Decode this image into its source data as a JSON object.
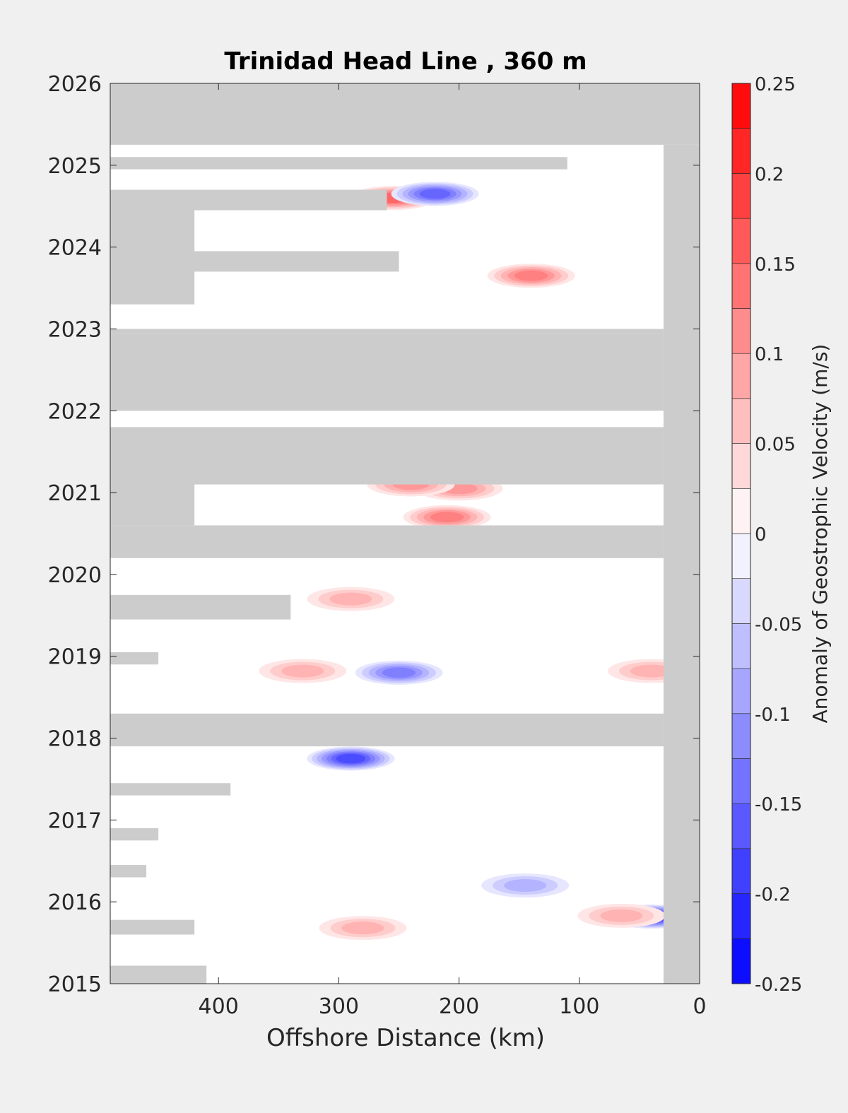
{
  "chart_data": {
    "type": "heatmap",
    "title": "Trinidad Head Line , 360 m",
    "xlabel": "Offshore Distance (km)",
    "ylabel": "",
    "xlim": [
      490,
      0
    ],
    "ylim": [
      2015,
      2026
    ],
    "x_ticks": [
      400,
      300,
      200,
      100,
      0
    ],
    "x_tick_labels": [
      "400",
      "300",
      "200",
      "100",
      "0"
    ],
    "y_ticks": [
      2015,
      2016,
      2017,
      2018,
      2019,
      2020,
      2021,
      2022,
      2023,
      2024,
      2025,
      2026
    ],
    "y_tick_labels": [
      "2015",
      "2016",
      "2017",
      "2018",
      "2019",
      "2020",
      "2021",
      "2022",
      "2023",
      "2024",
      "2025",
      "2026"
    ],
    "colorbar": {
      "label": "Anomaly of Geostrophic Velocity (m/s)",
      "min": -0.25,
      "max": 0.25,
      "step": 0.025,
      "ticks": [
        -0.25,
        -0.2,
        -0.15,
        -0.1,
        -0.05,
        0,
        0.05,
        0.1,
        0.15,
        0.2,
        0.25
      ],
      "tick_labels": [
        "-0.25",
        "-0.2",
        "-0.15",
        "-0.1",
        "-0.05",
        "0",
        "0.05",
        "0.1",
        "0.15",
        "0.2",
        "0.25"
      ],
      "colormap": "blue-white-red"
    },
    "colors": {
      "no_data": "#cccccc",
      "positive_max": "#ff0000",
      "negative_max": "#0000ff",
      "zero": "#ffffff"
    },
    "no_data_regions": [
      {
        "years": [
          2025.25,
          2026
        ],
        "x": [
          490,
          0
        ]
      },
      {
        "years": [
          2015,
          2025.25
        ],
        "x": [
          30,
          0
        ]
      },
      {
        "years": [
          2022.95,
          2023.0
        ],
        "x": [
          490,
          30
        ]
      },
      {
        "years": [
          2022.0,
          2022.95
        ],
        "x": [
          490,
          30
        ]
      },
      {
        "years": [
          2021.1,
          2021.8
        ],
        "x": [
          490,
          30
        ]
      },
      {
        "years": [
          2020.2,
          2020.6
        ],
        "x": [
          490,
          30
        ]
      },
      {
        "years": [
          2017.9,
          2018.3
        ],
        "x": [
          490,
          30
        ]
      },
      {
        "years": [
          2023.7,
          2023.95
        ],
        "x": [
          490,
          250
        ]
      },
      {
        "years": [
          2024.45,
          2024.7
        ],
        "x": [
          490,
          260
        ]
      },
      {
        "years": [
          2024.95,
          2025.1
        ],
        "x": [
          490,
          110
        ]
      },
      {
        "years": [
          2023.3,
          2024.5
        ],
        "x": [
          490,
          420
        ]
      },
      {
        "years": [
          2020.6,
          2021.1
        ],
        "x": [
          490,
          420
        ]
      },
      {
        "years": [
          2019.45,
          2019.75
        ],
        "x": [
          490,
          340
        ]
      },
      {
        "years": [
          2018.9,
          2019.05
        ],
        "x": [
          490,
          450
        ]
      },
      {
        "years": [
          2017.3,
          2017.45
        ],
        "x": [
          490,
          390
        ]
      },
      {
        "years": [
          2016.75,
          2016.9
        ],
        "x": [
          490,
          450
        ]
      },
      {
        "years": [
          2016.3,
          2016.45
        ],
        "x": [
          490,
          460
        ]
      },
      {
        "years": [
          2015.6,
          2015.78
        ],
        "x": [
          490,
          420
        ]
      },
      {
        "years": [
          2015.0,
          2015.22
        ],
        "x": [
          490,
          410
        ]
      }
    ],
    "anomaly_features": [
      {
        "x": 40,
        "year": 2015.82,
        "value": -0.2
      },
      {
        "x": 290,
        "year": 2017.75,
        "value": -0.18
      },
      {
        "x": 250,
        "year": 2018.8,
        "value": -0.12
      },
      {
        "x": 330,
        "year": 2018.82,
        "value": 0.08
      },
      {
        "x": 210,
        "year": 2020.7,
        "value": 0.13
      },
      {
        "x": 255,
        "year": 2024.6,
        "value": 0.15
      },
      {
        "x": 220,
        "year": 2024.65,
        "value": -0.15
      },
      {
        "x": 140,
        "year": 2023.65,
        "value": 0.12
      },
      {
        "x": 280,
        "year": 2015.68,
        "value": 0.08
      },
      {
        "x": 65,
        "year": 2015.83,
        "value": 0.08
      },
      {
        "x": 290,
        "year": 2019.7,
        "value": 0.08
      },
      {
        "x": 40,
        "year": 2018.82,
        "value": 0.08
      },
      {
        "x": 145,
        "year": 2016.2,
        "value": -0.08
      },
      {
        "x": 200,
        "year": 2021.05,
        "value": 0.1
      },
      {
        "x": 240,
        "year": 2021.1,
        "value": 0.1
      }
    ]
  }
}
